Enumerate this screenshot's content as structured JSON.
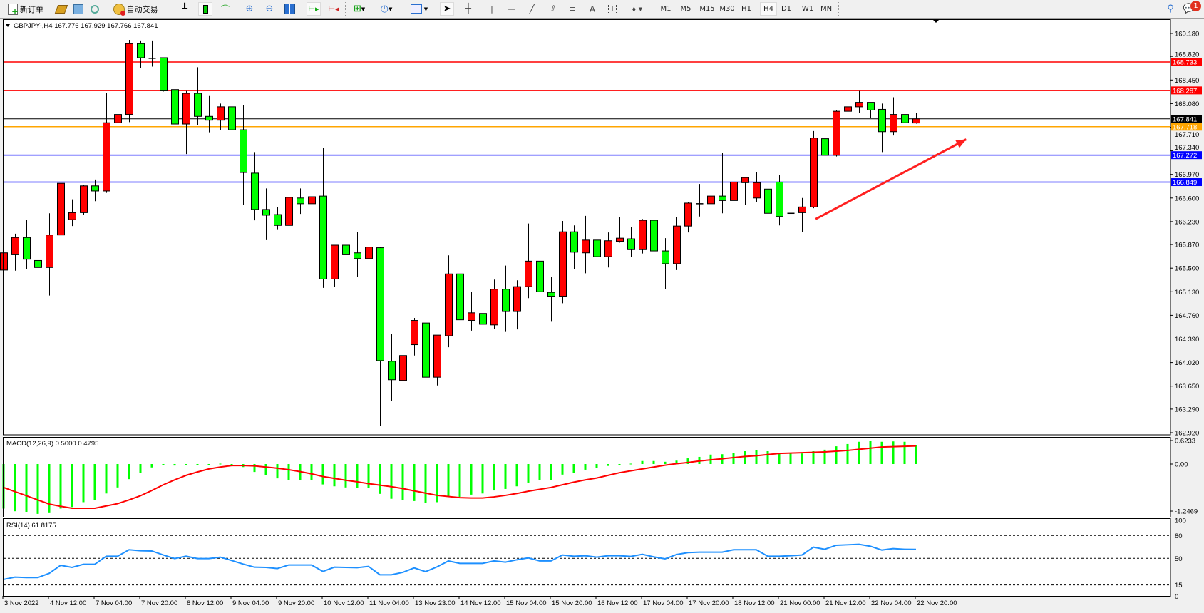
{
  "toolbar": {
    "new_order_label": "新订单",
    "auto_trading_label": "自动交易",
    "timeframes": [
      "M1",
      "M5",
      "M15",
      "M30",
      "H1",
      "H4",
      "D1",
      "W1",
      "MN"
    ],
    "active_timeframe": "H4",
    "notification_count": "1",
    "icons": [
      "new-order-icon",
      "market-watch-icon",
      "navigator-icon",
      "signals-icon",
      "auto-trading-icon",
      "bar-chart-icon",
      "candlestick-icon",
      "line-chart-icon",
      "zoom-in-icon",
      "zoom-out-icon",
      "tile-windows-icon",
      "auto-scroll-icon",
      "chart-shift-icon",
      "new-chart-icon",
      "periods-icon",
      "indicators-icon",
      "cursor-icon",
      "crosshair-icon",
      "vertical-line-icon",
      "horizontal-line-icon",
      "trendline-icon",
      "channel-icon",
      "fibonacci-icon",
      "text-icon",
      "text-label-icon",
      "arrows-icon",
      "search-icon",
      "notifications-icon"
    ]
  },
  "chart": {
    "header": "GBPJPY-,H4  167.776 167.929 167.766 167.841",
    "colors": {
      "bull": "#ff0000",
      "bear": "#00ff00",
      "background": "#ffffff",
      "grid": "none"
    },
    "price_ticks": [
      "169.180",
      "168.820",
      "168.450",
      "168.080",
      "167.710",
      "167.340",
      "166.970",
      "166.600",
      "166.230",
      "165.870",
      "165.500",
      "165.130",
      "164.760",
      "164.390",
      "164.020",
      "163.650",
      "163.290",
      "162.920"
    ],
    "price_range": [
      162.92,
      169.18
    ],
    "levels": [
      {
        "price": 168.733,
        "label": "168.733",
        "color": "#ff0000"
      },
      {
        "price": 168.287,
        "label": "168.287",
        "color": "#ff0000"
      },
      {
        "price": 167.841,
        "label": "167.841",
        "color": "#000000",
        "type": "bid"
      },
      {
        "price": 167.718,
        "label": "167.718",
        "color": "#ffa500"
      },
      {
        "price": 167.272,
        "label": "167.272",
        "color": "#0000ff"
      },
      {
        "price": 166.849,
        "label": "166.849",
        "color": "#0000ff"
      }
    ],
    "arrow": {
      "from_bar": 71.2,
      "from_price": 166.27,
      "to_bar": 84.4,
      "to_price": 167.52,
      "color": "#ff2020"
    },
    "time_labels": [
      "3 Nov 2022",
      "4 Nov 12:00",
      "7 Nov 04:00",
      "7 Nov 20:00",
      "8 Nov 12:00",
      "9 Nov 04:00",
      "9 Nov 20:00",
      "10 Nov 12:00",
      "11 Nov 04:00",
      "13 Nov 23:00",
      "14 Nov 12:00",
      "15 Nov 04:00",
      "15 Nov 20:00",
      "16 Nov 12:00",
      "17 Nov 04:00",
      "17 Nov 20:00",
      "18 Nov 12:00",
      "21 Nov 00:00",
      "21 Nov 12:00",
      "22 Nov 04:00",
      "22 Nov 20:00"
    ],
    "bars_per_time_label": 4,
    "candles_ohlc": [
      [
        165.47,
        165.74,
        165.13,
        165.74
      ],
      [
        165.71,
        166.04,
        165.46,
        165.98
      ],
      [
        165.98,
        166.26,
        165.49,
        165.64
      ],
      [
        165.62,
        166.11,
        165.38,
        165.51
      ],
      [
        165.51,
        166.36,
        165.07,
        166.02
      ],
      [
        166.02,
        166.88,
        165.9,
        166.83
      ],
      [
        166.26,
        166.58,
        166.16,
        166.37
      ],
      [
        166.37,
        166.8,
        166.34,
        166.79
      ],
      [
        166.79,
        166.89,
        166.55,
        166.71
      ],
      [
        166.71,
        168.25,
        166.68,
        167.78
      ],
      [
        167.78,
        167.97,
        167.53,
        167.91
      ],
      [
        167.91,
        169.08,
        167.79,
        169.02
      ],
      [
        169.02,
        169.07,
        168.64,
        168.8
      ],
      [
        168.79,
        169.07,
        168.66,
        168.79
      ],
      [
        168.8,
        168.8,
        168.27,
        168.29
      ],
      [
        168.3,
        168.36,
        167.51,
        167.76
      ],
      [
        167.76,
        168.29,
        167.29,
        168.24
      ],
      [
        168.24,
        168.65,
        167.74,
        167.88
      ],
      [
        167.88,
        168.21,
        167.63,
        167.82
      ],
      [
        167.82,
        168.08,
        167.66,
        168.03
      ],
      [
        168.03,
        168.29,
        167.59,
        167.67
      ],
      [
        167.67,
        168.06,
        166.49,
        167.0
      ],
      [
        166.99,
        167.32,
        166.25,
        166.42
      ],
      [
        166.42,
        166.75,
        165.94,
        166.33
      ],
      [
        166.34,
        166.46,
        166.11,
        166.17
      ],
      [
        166.17,
        166.69,
        166.16,
        166.61
      ],
      [
        166.6,
        166.75,
        166.35,
        166.51
      ],
      [
        166.51,
        166.93,
        166.33,
        166.62
      ],
      [
        166.63,
        167.38,
        165.19,
        165.33
      ],
      [
        165.33,
        165.86,
        165.21,
        165.86
      ],
      [
        165.86,
        166.0,
        164.35,
        165.71
      ],
      [
        165.74,
        166.07,
        165.36,
        165.65
      ],
      [
        165.65,
        165.93,
        165.37,
        165.83
      ],
      [
        165.82,
        165.83,
        163.03,
        164.05
      ],
      [
        164.04,
        164.47,
        163.42,
        163.75
      ],
      [
        163.74,
        164.21,
        163.6,
        164.13
      ],
      [
        164.3,
        164.72,
        164.13,
        164.68
      ],
      [
        164.64,
        164.73,
        163.74,
        163.79
      ],
      [
        163.79,
        164.45,
        163.66,
        164.45
      ],
      [
        164.44,
        165.7,
        164.26,
        165.41
      ],
      [
        165.41,
        165.6,
        164.54,
        164.69
      ],
      [
        164.68,
        165.13,
        164.52,
        164.8
      ],
      [
        164.79,
        164.81,
        164.13,
        164.62
      ],
      [
        164.61,
        165.32,
        164.55,
        165.17
      ],
      [
        165.17,
        165.54,
        164.5,
        164.82
      ],
      [
        164.82,
        165.31,
        164.54,
        165.21
      ],
      [
        165.21,
        166.2,
        165.03,
        165.61
      ],
      [
        165.61,
        165.75,
        164.4,
        165.13
      ],
      [
        165.12,
        165.36,
        164.66,
        165.06
      ],
      [
        165.06,
        166.24,
        164.95,
        166.07
      ],
      [
        166.07,
        166.17,
        165.49,
        165.75
      ],
      [
        165.74,
        166.32,
        165.42,
        165.94
      ],
      [
        165.94,
        166.36,
        165.01,
        165.68
      ],
      [
        165.68,
        166.06,
        165.51,
        165.93
      ],
      [
        165.92,
        166.3,
        165.9,
        165.97
      ],
      [
        165.96,
        166.14,
        165.67,
        165.79
      ],
      [
        165.79,
        166.27,
        165.73,
        166.25
      ],
      [
        166.25,
        166.31,
        165.3,
        165.77
      ],
      [
        165.77,
        165.97,
        165.17,
        165.57
      ],
      [
        165.57,
        166.3,
        165.47,
        166.16
      ],
      [
        166.16,
        166.53,
        166.06,
        166.52
      ],
      [
        166.51,
        166.82,
        166.31,
        166.51
      ],
      [
        166.51,
        166.65,
        166.23,
        166.63
      ],
      [
        166.63,
        167.31,
        166.36,
        166.56
      ],
      [
        166.56,
        166.96,
        166.11,
        166.85
      ],
      [
        166.84,
        166.92,
        166.49,
        166.92
      ],
      [
        166.6,
        167.0,
        166.54,
        166.84
      ],
      [
        166.74,
        166.96,
        166.33,
        166.36
      ],
      [
        166.85,
        166.96,
        166.17,
        166.31
      ],
      [
        166.36,
        166.42,
        166.17,
        166.36
      ],
      [
        166.37,
        166.6,
        166.07,
        166.46
      ],
      [
        166.46,
        167.65,
        166.44,
        167.54
      ],
      [
        167.53,
        167.65,
        166.99,
        167.27
      ],
      [
        167.27,
        167.98,
        167.25,
        167.96
      ],
      [
        167.96,
        168.08,
        167.75,
        168.03
      ],
      [
        168.03,
        168.29,
        167.93,
        168.1
      ],
      [
        168.1,
        168.1,
        167.85,
        167.98
      ],
      [
        167.99,
        168.08,
        167.32,
        167.64
      ],
      [
        167.64,
        168.18,
        167.58,
        167.91
      ],
      [
        167.91,
        167.99,
        167.66,
        167.78
      ],
      [
        167.776,
        167.929,
        167.766,
        167.841
      ]
    ]
  },
  "macd": {
    "label": "MACD(12,26,9) 0.5000 0.4795",
    "ticks": [
      "0.6233",
      "0.00",
      "-1.2469"
    ],
    "range": [
      -1.2469,
      0.6233
    ],
    "histogram_color": "#00ff00",
    "signal_color": "#ff0000",
    "histogram": [
      -1.18,
      -1.25,
      -1.28,
      -1.32,
      -1.3,
      -1.18,
      -1.14,
      -1.01,
      -0.95,
      -0.78,
      -0.62,
      -0.4,
      -0.23,
      -0.09,
      -0.03,
      -0.04,
      -0.01,
      -0.01,
      0.0,
      0.01,
      -0.02,
      -0.08,
      -0.21,
      -0.3,
      -0.38,
      -0.42,
      -0.43,
      -0.43,
      -0.54,
      -0.59,
      -0.62,
      -0.64,
      -0.64,
      -0.79,
      -0.92,
      -0.96,
      -0.98,
      -1.03,
      -1.01,
      -0.87,
      -0.87,
      -0.81,
      -0.78,
      -0.7,
      -0.66,
      -0.59,
      -0.49,
      -0.43,
      -0.42,
      -0.28,
      -0.23,
      -0.15,
      -0.11,
      -0.05,
      -0.01,
      0.01,
      0.08,
      0.08,
      0.06,
      0.09,
      0.15,
      0.19,
      0.25,
      0.26,
      0.3,
      0.34,
      0.36,
      0.34,
      0.3,
      0.28,
      0.28,
      0.34,
      0.38,
      0.47,
      0.53,
      0.59,
      0.61,
      0.59,
      0.6,
      0.59,
      0.5
    ],
    "signal": [
      -0.62,
      -0.73,
      -0.84,
      -0.95,
      -1.06,
      -1.12,
      -1.17,
      -1.17,
      -1.17,
      -1.11,
      -1.05,
      -0.95,
      -0.84,
      -0.7,
      -0.55,
      -0.42,
      -0.3,
      -0.21,
      -0.13,
      -0.08,
      -0.04,
      -0.04,
      -0.05,
      -0.08,
      -0.11,
      -0.15,
      -0.2,
      -0.26,
      -0.33,
      -0.38,
      -0.43,
      -0.47,
      -0.52,
      -0.56,
      -0.6,
      -0.65,
      -0.71,
      -0.77,
      -0.83,
      -0.86,
      -0.89,
      -0.9,
      -0.9,
      -0.87,
      -0.83,
      -0.78,
      -0.72,
      -0.67,
      -0.62,
      -0.55,
      -0.48,
      -0.42,
      -0.37,
      -0.3,
      -0.23,
      -0.18,
      -0.13,
      -0.08,
      -0.03,
      0.01,
      0.04,
      0.08,
      0.11,
      0.14,
      0.17,
      0.2,
      0.22,
      0.25,
      0.28,
      0.29,
      0.3,
      0.31,
      0.32,
      0.34,
      0.36,
      0.39,
      0.42,
      0.45,
      0.46,
      0.47,
      0.4795
    ]
  },
  "rsi": {
    "label": "RSI(14) 61.8175",
    "ticks": [
      "100",
      "80",
      "50",
      "15",
      "0"
    ],
    "levels": [
      80,
      50,
      15
    ],
    "line_color": "#1e90ff",
    "values": [
      22.2,
      25.3,
      24.7,
      24.7,
      30.3,
      40.9,
      38.1,
      42.2,
      42.2,
      52.8,
      52.8,
      61.3,
      60.0,
      59.7,
      54.4,
      49.7,
      52.8,
      49.7,
      49.7,
      51.6,
      47.2,
      42.5,
      38.4,
      38.1,
      36.6,
      41.3,
      41.3,
      41.3,
      32.8,
      38.4,
      38.1,
      37.8,
      39.4,
      28.4,
      28.4,
      31.6,
      37.5,
      32.5,
      38.8,
      46.6,
      43.4,
      43.4,
      43.4,
      46.6,
      45.0,
      48.1,
      50.6,
      46.6,
      46.6,
      54.4,
      52.8,
      53.4,
      51.6,
      53.4,
      53.4,
      52.5,
      55.3,
      51.9,
      49.4,
      55.0,
      57.5,
      58.1,
      58.1,
      58.1,
      61.3,
      61.3,
      61.3,
      52.8,
      52.8,
      53.4,
      54.4,
      64.7,
      61.9,
      67.2,
      67.8,
      68.4,
      65.9,
      60.9,
      62.8,
      61.9,
      61.8175
    ]
  }
}
